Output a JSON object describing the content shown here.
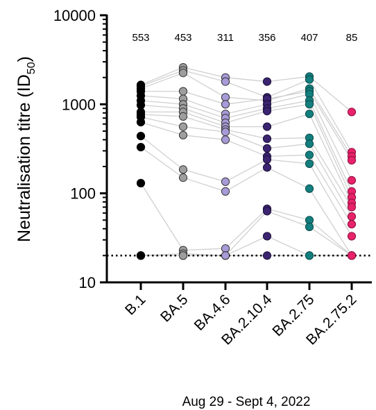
{
  "chart_data": {
    "type": "scatter",
    "yscale": "log",
    "ylim": [
      10,
      10000
    ],
    "yticks": [
      "10",
      "100",
      "1000",
      "10000"
    ],
    "ylabel_main": "Neutralisation titre (ID",
    "ylabel_sub": "50",
    "ylabel_close": ")",
    "xlabel": "Aug 29 - Sept 4, 2022",
    "detection_limit": 20,
    "categories": [
      "B.1",
      "BA.5",
      "BA.4.6",
      "BA.2.10.4",
      "BA.2.75",
      "BA.2.75.2"
    ],
    "geometric_means": [
      "553",
      "453",
      "311",
      "356",
      "407",
      "85"
    ],
    "colors": [
      "#000000",
      "#9e9e9e",
      "#a89ad8",
      "#3b2470",
      "#127f7e",
      "#e8226a"
    ],
    "edge_colors": [
      "#000000",
      "#333333",
      "#333333",
      "#1a0f38",
      "#0b4a4a",
      "#8a0f3a"
    ],
    "subjects": [
      [
        1650,
        2600,
        2000,
        1800,
        2050,
        820
      ],
      [
        1600,
        2400,
        1800,
        1200,
        1900,
        290
      ],
      [
        1500,
        2250,
        1200,
        1100,
        1500,
        260
      ],
      [
        1400,
        1400,
        1000,
        1150,
        1400,
        235
      ],
      [
        1250,
        1150,
        780,
        1000,
        1300,
        140
      ],
      [
        1100,
        1000,
        700,
        900,
        1100,
        105
      ],
      [
        980,
        900,
        620,
        840,
        1000,
        90
      ],
      [
        820,
        820,
        560,
        560,
        780,
        78
      ],
      [
        770,
        730,
        520,
        410,
        420,
        70
      ],
      [
        720,
        560,
        490,
        320,
        360,
        55
      ],
      [
        630,
        450,
        400,
        260,
        270,
        45
      ],
      [
        440,
        185,
        135,
        240,
        215,
        33
      ],
      [
        330,
        150,
        105,
        195,
        113,
        20
      ],
      [
        130,
        23,
        24,
        67,
        50,
        20
      ],
      [
        20,
        21,
        20,
        63,
        42,
        20
      ],
      [
        20,
        20,
        20,
        33,
        20,
        20
      ],
      [
        20,
        20,
        20,
        20,
        20,
        20
      ]
    ]
  }
}
